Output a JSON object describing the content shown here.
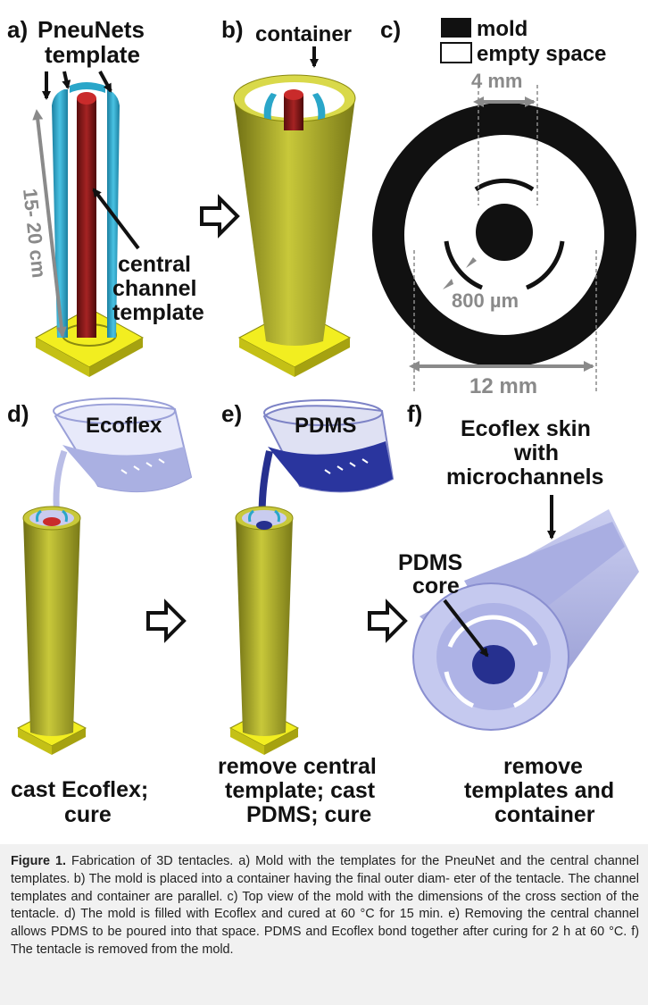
{
  "panels": {
    "a": {
      "letter": "a)",
      "title_lines": [
        "PneuNets",
        "template"
      ],
      "annotation_lines": [
        "central",
        "channel",
        "template"
      ],
      "length_label": "15- 20 cm"
    },
    "b": {
      "letter": "b)",
      "container_label": "container"
    },
    "c": {
      "letter": "c)",
      "legend": [
        {
          "swatch": "#111111",
          "label": "mold"
        },
        {
          "swatch": "#ffffff",
          "label": "empty space"
        }
      ],
      "dim_4mm": "4 mm",
      "dim_800um": "800 µm",
      "dim_12mm": "12 mm"
    },
    "d": {
      "letter": "d)",
      "beaker_label": "Ecoflex",
      "caption_lines": [
        "cast Ecoflex;",
        "cure"
      ]
    },
    "e": {
      "letter": "e)",
      "beaker_label": "PDMS",
      "caption_lines": [
        "remove central",
        "template; cast",
        "PDMS; cure"
      ]
    },
    "f": {
      "letter": "f)",
      "skin_label_lines": [
        "Ecoflex skin",
        "with",
        "microchannels"
      ],
      "core_label_lines": [
        "PDMS",
        "core"
      ],
      "caption_lines": [
        "remove",
        "templates and",
        "container"
      ]
    }
  },
  "colors": {
    "container_yellow": "#b5b52a",
    "base_yellow": "#f0ec1a",
    "template_cyan": "#2aa6c9",
    "central_red": "#8b1a1a",
    "ecoflex": "#b9bde6",
    "pdms": "#26308f"
  },
  "caption": {
    "label": "Figure 1.",
    "lines": [
      "Fabrication of 3D tentacles. a) Mold with the templates for the PneuNet and the",
      "central channel templates. b) The mold is placed into a container having the final outer diam-",
      "eter of the tentacle. The channel templates and container are parallel. c) Top view of the mold",
      "with the dimensions of the cross section of the tentacle. d) The mold is filled with Ecoflex and",
      "cured at 60 °C for 15 min. e) Removing the central channel allows PDMS to be poured into",
      "that space. PDMS and Ecoflex bond together after curing for 2 h at 60 °C. f) The tentacle is",
      "removed from the mold."
    ]
  }
}
